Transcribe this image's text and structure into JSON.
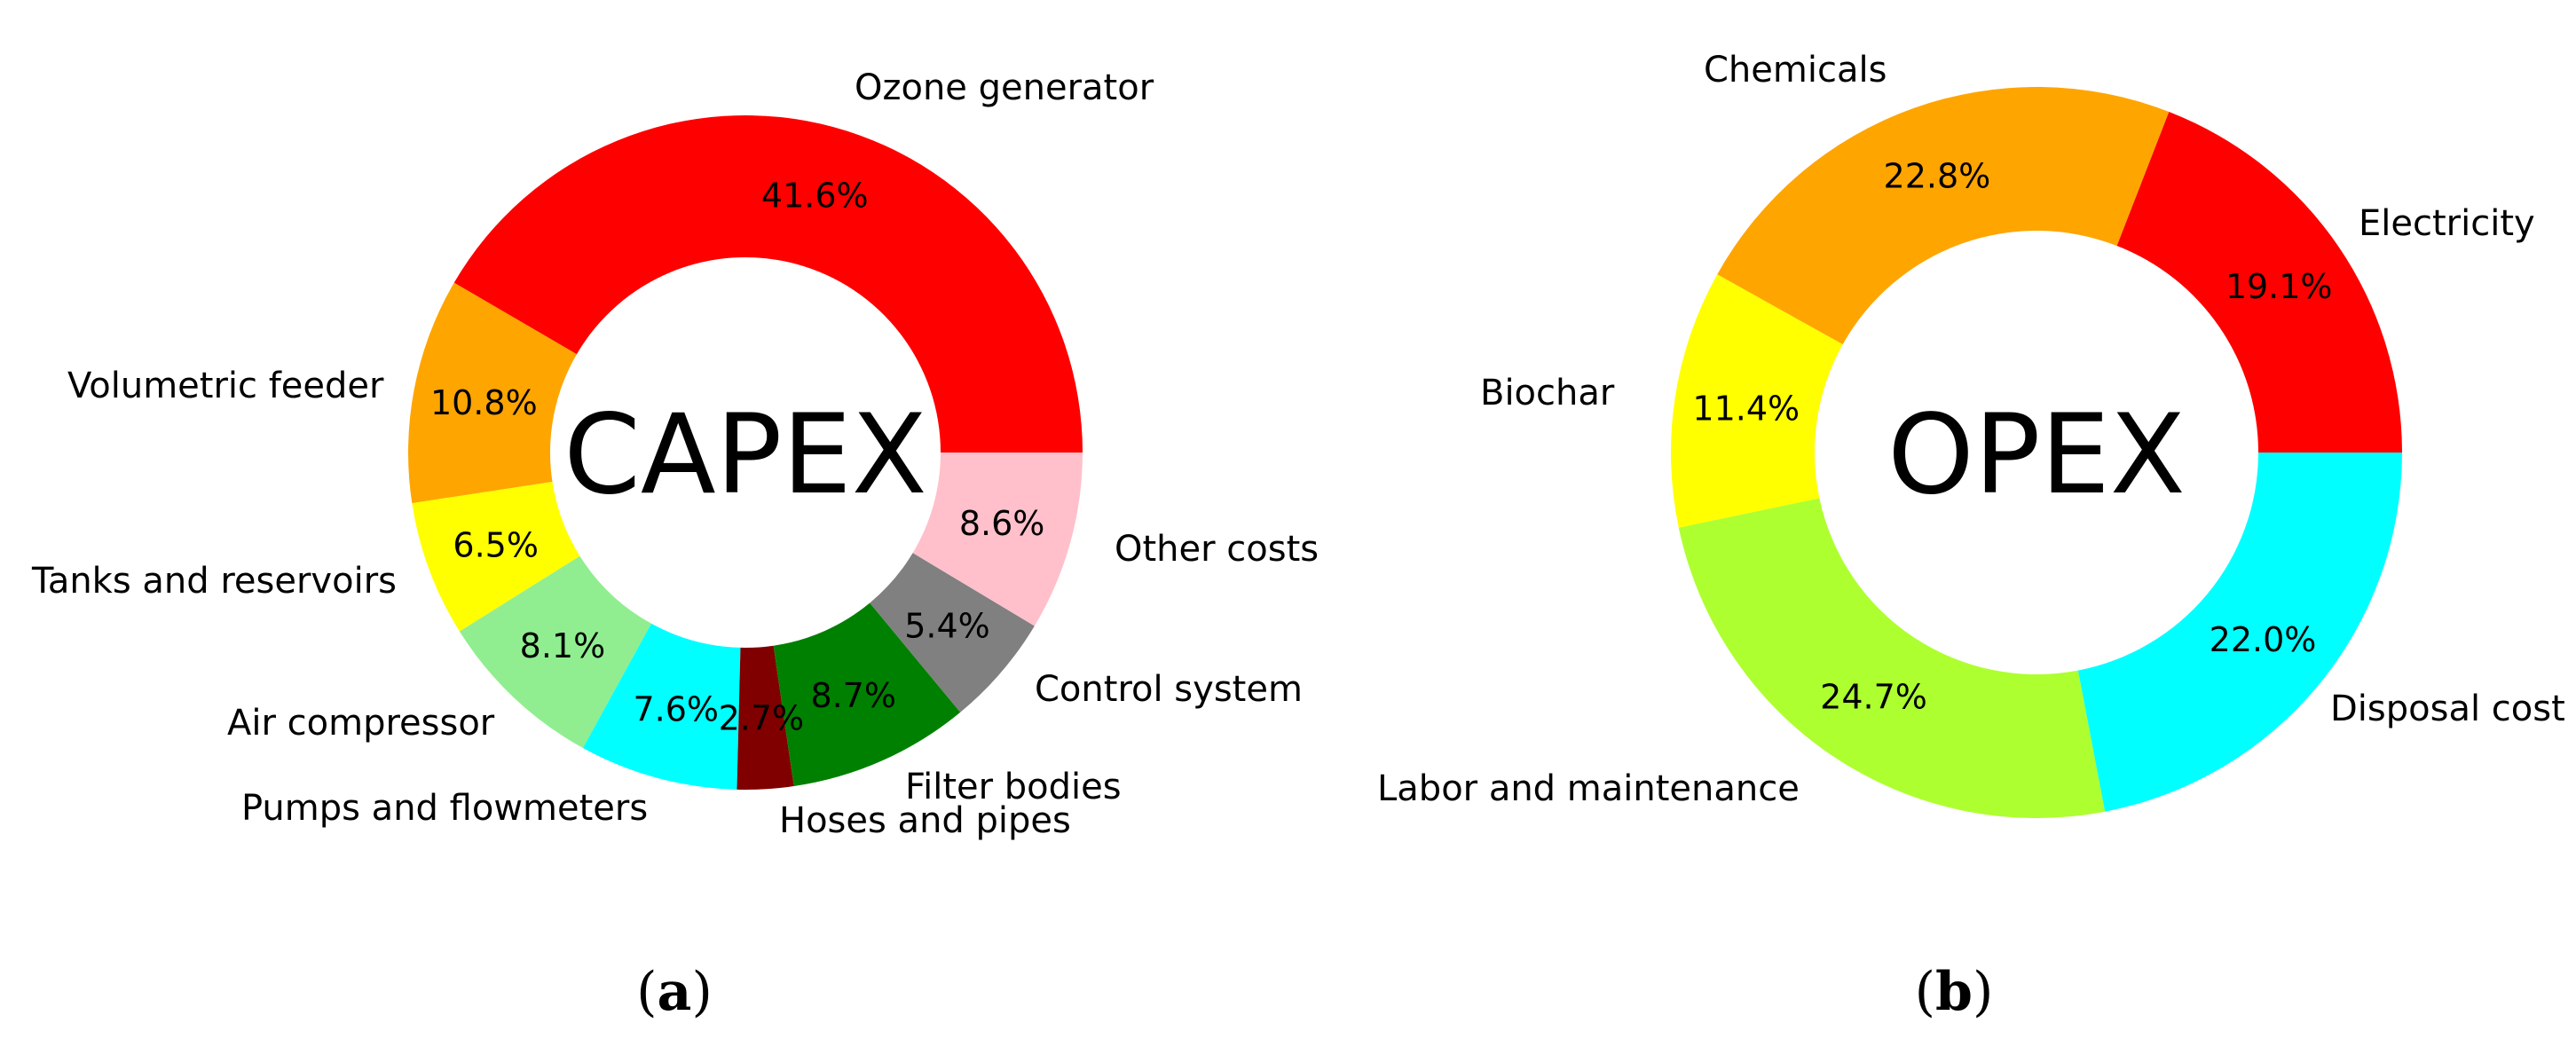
{
  "chart_data": [
    {
      "type": "pie",
      "center_label": "CAPEX",
      "panel_label": {
        "open": "(",
        "letter": "a",
        "close": ")"
      },
      "slices": [
        {
          "label": "Ozone generator",
          "value": 41.6,
          "display": "41.6%",
          "color": "#ff0000"
        },
        {
          "label": "Volumetric feeder",
          "value": 10.8,
          "display": "10.8%",
          "color": "#ffa500"
        },
        {
          "label": "Tanks and reservoirs",
          "value": 6.5,
          "display": "6.5%",
          "color": "#ffff00"
        },
        {
          "label": "Air compressor",
          "value": 8.1,
          "display": "8.1%",
          "color": "#90ee90"
        },
        {
          "label": "Pumps and flowmeters",
          "value": 7.6,
          "display": "7.6%",
          "color": "#00ffff"
        },
        {
          "label": "Hoses and pipes",
          "value": 2.7,
          "display": "2.7%",
          "color": "#800000"
        },
        {
          "label": "Filter bodies",
          "value": 8.7,
          "display": "8.7%",
          "color": "#008000"
        },
        {
          "label": "Control system",
          "value": 5.4,
          "display": "5.4%",
          "color": "#808080"
        },
        {
          "label": "Other costs",
          "value": 8.6,
          "display": "8.6%",
          "color": "#ffc0cb"
        }
      ]
    },
    {
      "type": "pie",
      "center_label": "OPEX",
      "panel_label": {
        "open": "(",
        "letter": "b",
        "close": ")"
      },
      "slices": [
        {
          "label": "Electricity",
          "value": 19.1,
          "display": "19.1%",
          "color": "#ff0000"
        },
        {
          "label": "Chemicals",
          "value": 22.8,
          "display": "22.8%",
          "color": "#ffa500"
        },
        {
          "label": "Biochar",
          "value": 11.4,
          "display": "11.4%",
          "color": "#ffff00"
        },
        {
          "label": "Labor and maintenance",
          "value": 24.7,
          "display": "24.7%",
          "color": "#adff2f"
        },
        {
          "label": "Disposal cost",
          "value": 22.0,
          "display": "22.0%",
          "color": "#00ffff"
        }
      ]
    }
  ]
}
